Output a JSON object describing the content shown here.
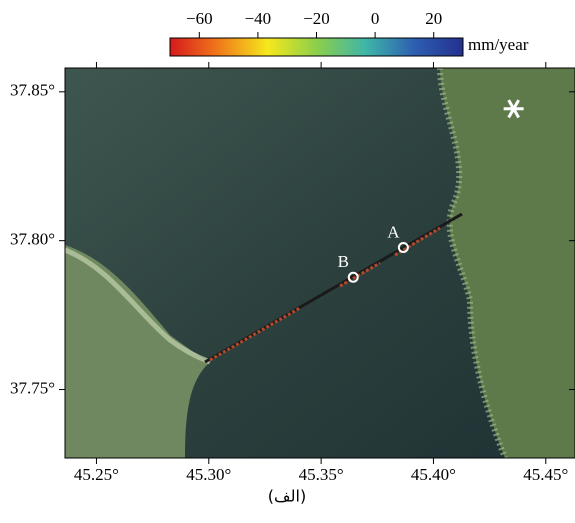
{
  "map": {
    "colorbar": {
      "unit": "mm/year",
      "clim": [
        -70,
        30
      ],
      "ticks": [
        {
          "value": -60,
          "label": "−60"
        },
        {
          "value": -40,
          "label": "−40"
        },
        {
          "value": -20,
          "label": "−20"
        },
        0,
        20
      ],
      "colors": [
        "#d7191c",
        "#f07a1a",
        "#f5e81c",
        "#8ccf4a",
        "#3fb6a8",
        "#2d5fb0",
        "#24308f"
      ]
    },
    "xlim": [
      45.236,
      45.463
    ],
    "ylim": [
      37.727,
      37.858
    ],
    "xticks": [
      {
        "value": 45.25,
        "label": "45.25°"
      },
      {
        "value": 45.3,
        "label": "45.30°"
      },
      {
        "value": 45.35,
        "label": "45.35°"
      },
      {
        "value": 45.4,
        "label": "45.40°"
      },
      {
        "value": 45.45,
        "label": "45.45°"
      }
    ],
    "yticks": [
      {
        "value": 37.75,
        "label": "37.75°"
      },
      {
        "value": 37.8,
        "label": "37.80°"
      },
      {
        "value": 37.85,
        "label": "37.85°"
      }
    ],
    "points": [
      {
        "label": "A",
        "lon": 45.3866,
        "lat": 37.7977
      },
      {
        "label": "B",
        "lon": 45.3643,
        "lat": 37.7877
      }
    ],
    "reference_marker": {
      "lon": 45.4357,
      "lat": 37.8443
    },
    "caption": "(الف)"
  }
}
